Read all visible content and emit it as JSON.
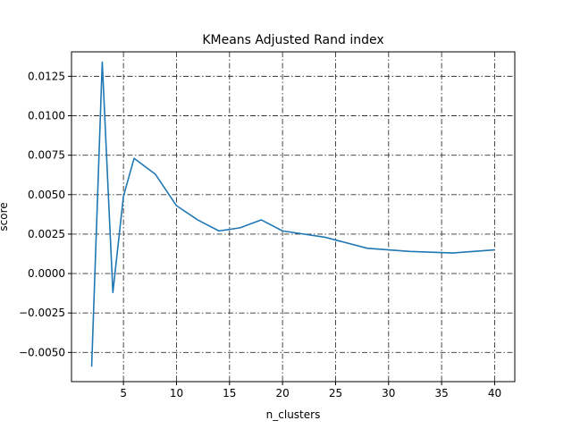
{
  "chart_data": {
    "type": "line",
    "title": "KMeans Adjusted Rand index",
    "xlabel": "n_clusters",
    "ylabel": "score",
    "xlim": [
      0.1,
      41.9
    ],
    "ylim": [
      -0.00685,
      0.01405
    ],
    "xticks": [
      5,
      10,
      15,
      20,
      25,
      30,
      35,
      40
    ],
    "yticks": [
      -0.005,
      -0.0025,
      0.0,
      0.0025,
      0.005,
      0.0075,
      0.01,
      0.0125
    ],
    "xtick_labels": [
      "5",
      "10",
      "15",
      "20",
      "25",
      "30",
      "35",
      "40"
    ],
    "ytick_labels": [
      "−0.0050",
      "−0.0025",
      "0.0000",
      "0.0025",
      "0.0050",
      "0.0075",
      "0.0100",
      "0.0125"
    ],
    "grid": true,
    "grid_style": "dashdot",
    "grid_color": "#333333",
    "series": [
      {
        "color": "#1f77b4",
        "x": [
          2,
          3,
          4,
          5,
          6,
          8,
          10,
          12,
          14,
          16,
          18,
          20,
          24,
          28,
          32,
          36,
          40
        ],
        "y": [
          -0.0059,
          0.0134,
          -0.0012,
          0.0049,
          0.0073,
          0.0063,
          0.0043,
          0.0034,
          0.0027,
          0.0029,
          0.0034,
          0.0027,
          0.0023,
          0.0016,
          0.0014,
          0.0013,
          0.0015
        ]
      }
    ]
  }
}
